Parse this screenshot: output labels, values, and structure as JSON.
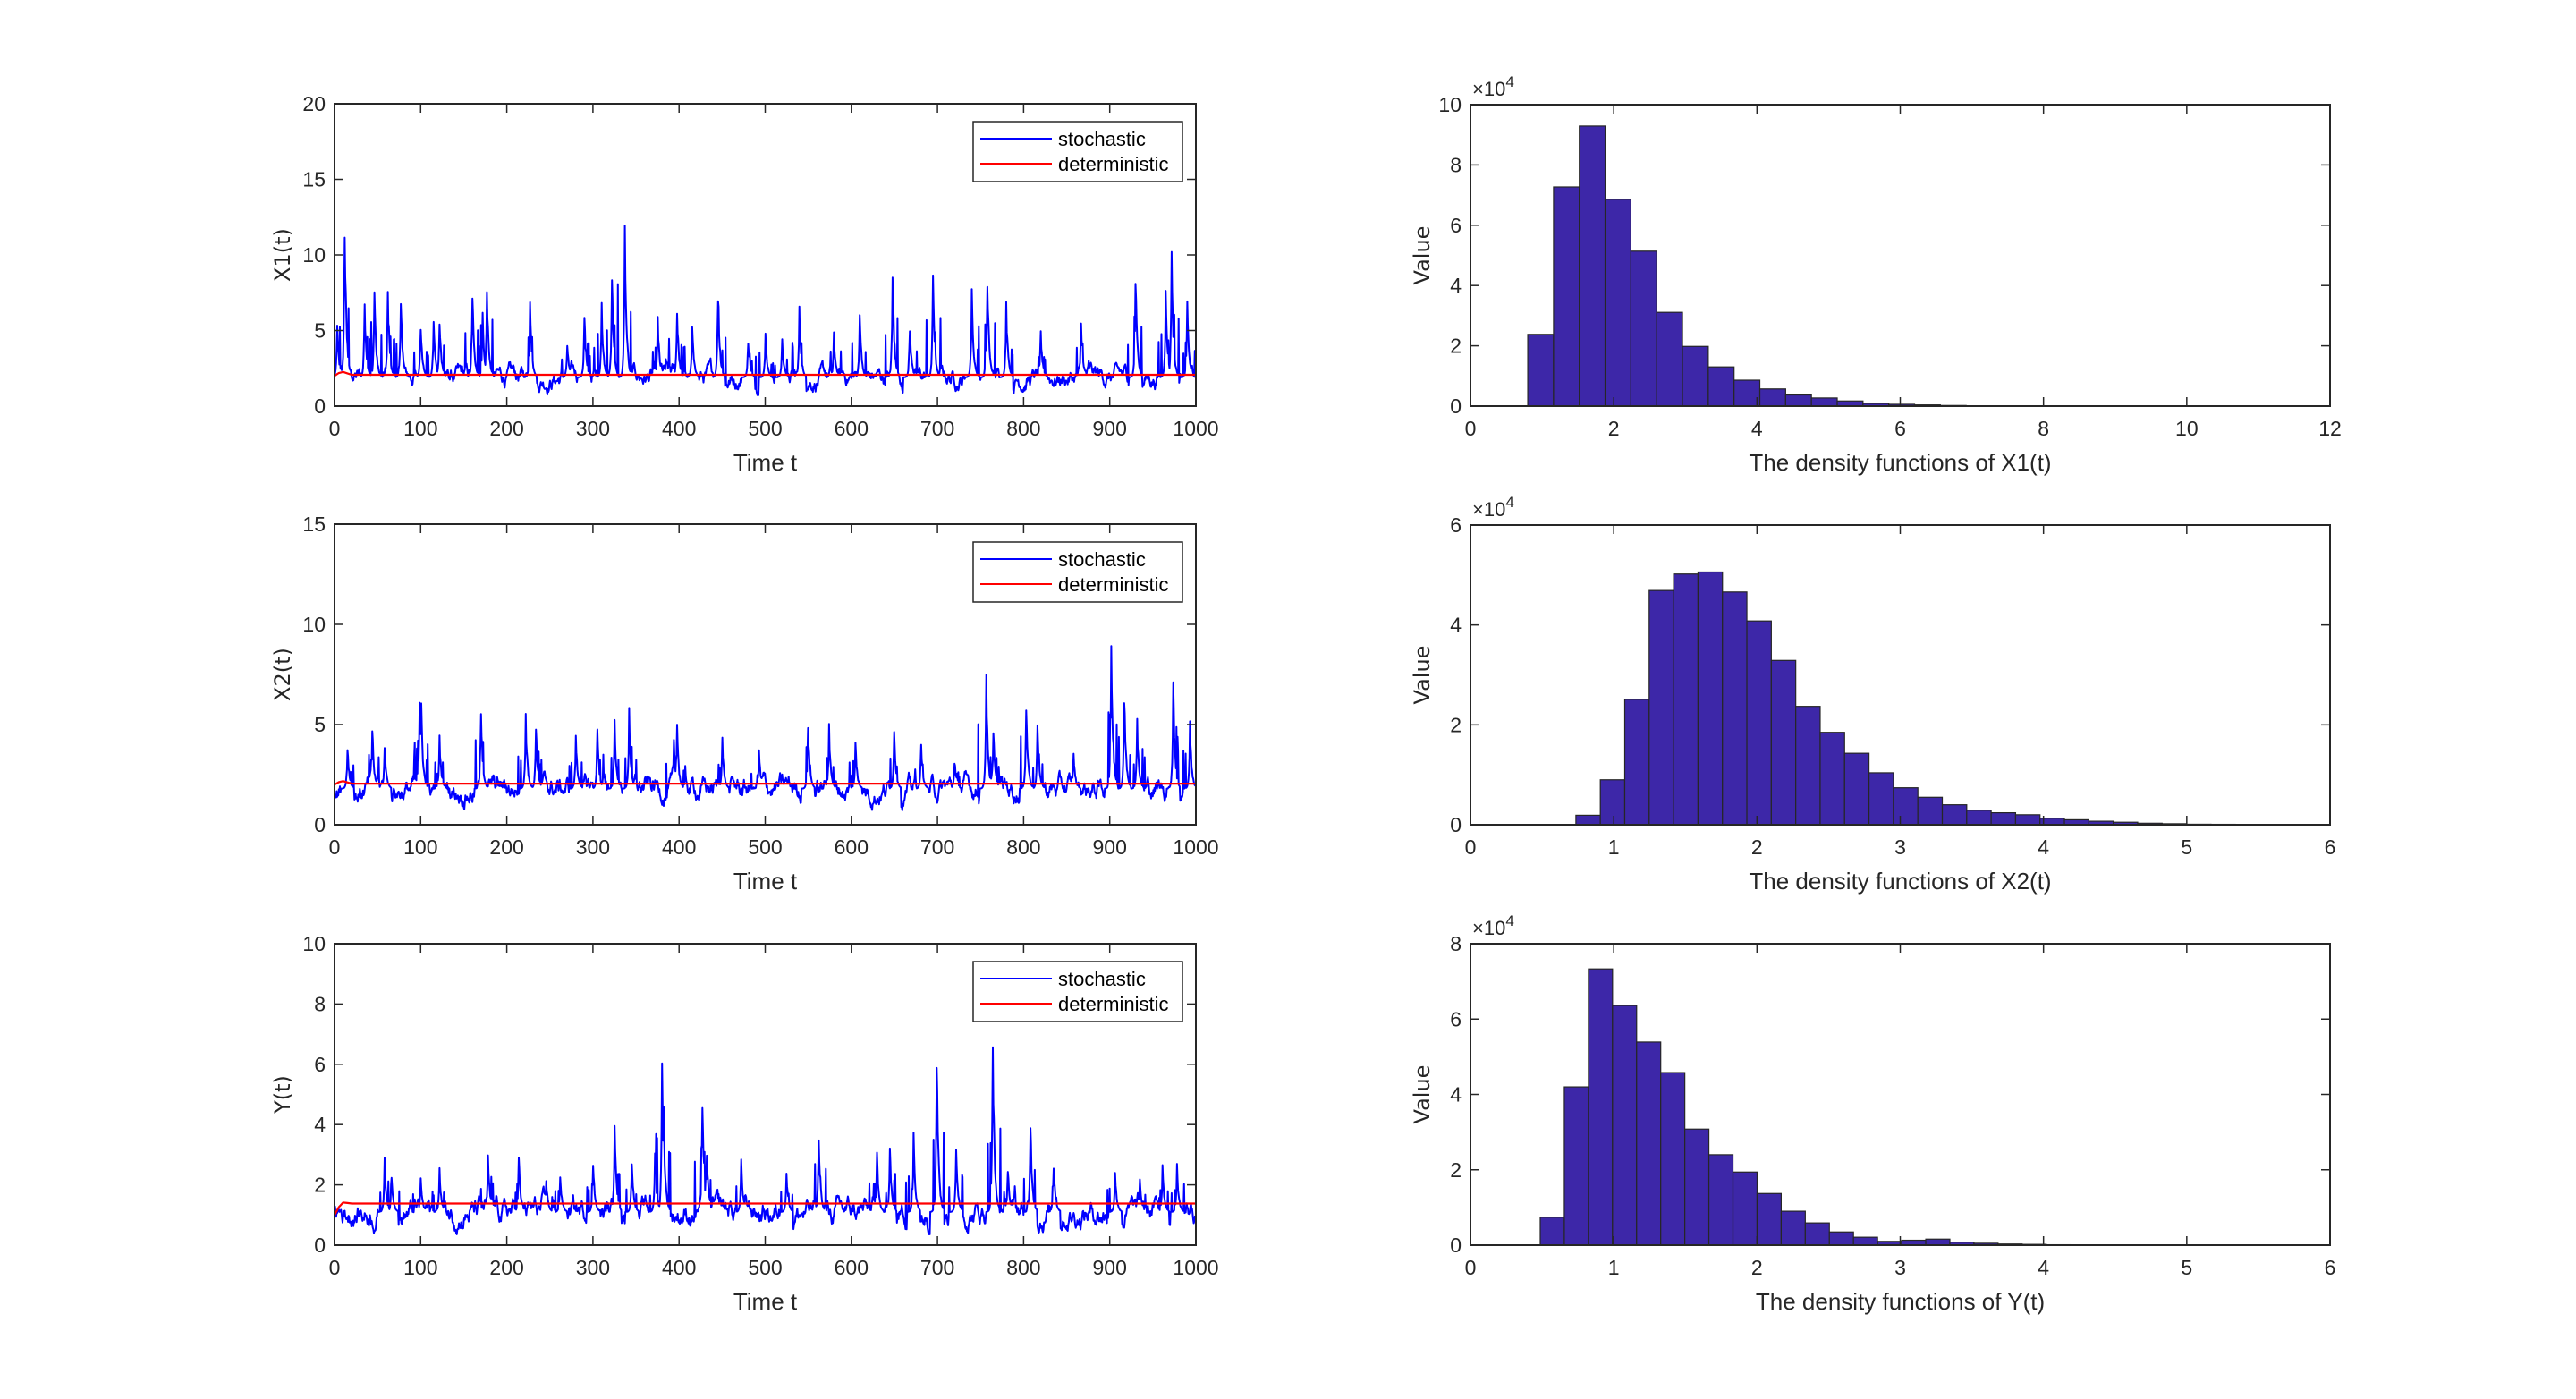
{
  "chart_data": [
    {
      "type": "line",
      "id": "x1-time",
      "xlabel": "Time t",
      "ylabel": "X1(t)",
      "xlim": [
        0,
        1000
      ],
      "ylim": [
        0,
        20
      ],
      "xticks": [
        "0",
        "100",
        "200",
        "300",
        "400",
        "500",
        "600",
        "700",
        "800",
        "900",
        "1000"
      ],
      "yticks": [
        "0",
        "5",
        "10",
        "15",
        "20"
      ],
      "legend": {
        "position": "top-right",
        "entries": [
          "stochastic",
          "deterministic"
        ]
      },
      "colors": {
        "stochastic": "#0000FF",
        "deterministic": "#FF0000"
      },
      "deterministic": {
        "start": 2.0,
        "peak": 2.3,
        "equilibrium": 2.07
      },
      "stochastic": {
        "baseline": 1.9,
        "low": 0.8,
        "peaks": [
          [
            3,
            5.2
          ],
          [
            12,
            11.8
          ],
          [
            35,
            6.7
          ],
          [
            46,
            7.7
          ],
          [
            62,
            7.4
          ],
          [
            77,
            7.2
          ],
          [
            100,
            5.3
          ],
          [
            115,
            5.6
          ],
          [
            122,
            5.6
          ],
          [
            160,
            7.5
          ],
          [
            172,
            5.8
          ],
          [
            177,
            7.9
          ],
          [
            227,
            6.6
          ],
          [
            270,
            4.2
          ],
          [
            290,
            5.9
          ],
          [
            310,
            6.5
          ],
          [
            322,
            8.5
          ],
          [
            337,
            11.6
          ],
          [
            375,
            5.6
          ],
          [
            398,
            6.3
          ],
          [
            415,
            5.2
          ],
          [
            445,
            7.6
          ],
          [
            480,
            4.4
          ],
          [
            500,
            4.6
          ],
          [
            520,
            4.3
          ],
          [
            540,
            6.1
          ],
          [
            580,
            4.6
          ],
          [
            610,
            5.7
          ],
          [
            648,
            8.7
          ],
          [
            668,
            5.2
          ],
          [
            695,
            8.4
          ],
          [
            740,
            7.2
          ],
          [
            758,
            8.6
          ],
          [
            780,
            6.5
          ],
          [
            820,
            4.8
          ],
          [
            867,
            5.6
          ],
          [
            930,
            8.2
          ],
          [
            965,
            7.0
          ],
          [
            972,
            9.6
          ],
          [
            990,
            6.8
          ]
        ]
      }
    },
    {
      "type": "histogram",
      "id": "x1-hist",
      "xlabel": "The density functions of X1(t)",
      "ylabel": "Value",
      "xlim": [
        0,
        12
      ],
      "ylim": [
        0,
        10
      ],
      "y_multiplier": "×10",
      "y_exponent": "4",
      "xticks": [
        "0",
        "2",
        "4",
        "6",
        "8",
        "10",
        "12"
      ],
      "yticks": [
        "0",
        "2",
        "4",
        "6",
        "8",
        "10"
      ],
      "bin_start": 0.8,
      "bin_width": 0.36,
      "values": [
        2.38,
        7.27,
        9.29,
        6.86,
        5.14,
        3.11,
        1.98,
        1.3,
        0.86,
        0.57,
        0.37,
        0.27,
        0.17,
        0.09,
        0.06,
        0.04,
        0.02,
        0.01,
        0.01,
        0.005,
        0.004,
        0.003,
        0.002,
        0.002,
        0.001,
        0.001,
        0.001,
        0.001,
        0.001,
        0.001
      ],
      "color": "#3D27A8"
    },
    {
      "type": "line",
      "id": "x2-time",
      "xlabel": "Time t",
      "ylabel": "X2(t)",
      "xlim": [
        0,
        1000
      ],
      "ylim": [
        0,
        15
      ],
      "xticks": [
        "0",
        "100",
        "200",
        "300",
        "400",
        "500",
        "600",
        "700",
        "800",
        "900",
        "1000"
      ],
      "yticks": [
        "0",
        "5",
        "10",
        "15"
      ],
      "legend": {
        "position": "top-right",
        "entries": [
          "stochastic",
          "deterministic"
        ]
      },
      "colors": {
        "stochastic": "#0000FF",
        "deterministic": "#FF0000"
      },
      "deterministic": {
        "start": 2.0,
        "peak": 2.2,
        "equilibrium": 2.05
      },
      "stochastic": {
        "baseline": 1.8,
        "low": 0.8,
        "peaks": [
          [
            15,
            3.8
          ],
          [
            44,
            4.8
          ],
          [
            58,
            3.9
          ],
          [
            99,
            6.5
          ],
          [
            101,
            5.8
          ],
          [
            122,
            4.2
          ],
          [
            170,
            5.7
          ],
          [
            222,
            5.3
          ],
          [
            234,
            4.8
          ],
          [
            280,
            4.3
          ],
          [
            305,
            4.6
          ],
          [
            325,
            5.0
          ],
          [
            342,
            5.4
          ],
          [
            394,
            4.0
          ],
          [
            398,
            4.7
          ],
          [
            450,
            4.2
          ],
          [
            493,
            3.6
          ],
          [
            550,
            5.0
          ],
          [
            574,
            4.7
          ],
          [
            605,
            4.0
          ],
          [
            650,
            4.5
          ],
          [
            681,
            3.9
          ],
          [
            720,
            3.2
          ],
          [
            757,
            6.9
          ],
          [
            765,
            4.8
          ],
          [
            803,
            6.0
          ],
          [
            816,
            4.7
          ],
          [
            858,
            3.5
          ],
          [
            902,
            8.8
          ],
          [
            917,
            6.5
          ],
          [
            932,
            4.9
          ],
          [
            974,
            6.8
          ],
          [
            993,
            4.8
          ]
        ]
      }
    },
    {
      "type": "histogram",
      "id": "x2-hist",
      "xlabel": "The density functions of X2(t)",
      "ylabel": "Value",
      "xlim": [
        0,
        6
      ],
      "ylim": [
        0,
        6
      ],
      "y_multiplier": "×10",
      "y_exponent": "4",
      "xticks": [
        "0",
        "1",
        "2",
        "3",
        "4",
        "5",
        "6"
      ],
      "yticks": [
        "0",
        "2",
        "4",
        "6"
      ],
      "bin_start": 0.736,
      "bin_width": 0.1705,
      "values": [
        0.19,
        0.9,
        2.51,
        4.69,
        5.02,
        5.06,
        4.66,
        4.08,
        3.29,
        2.37,
        1.85,
        1.43,
        1.04,
        0.74,
        0.55,
        0.4,
        0.29,
        0.24,
        0.2,
        0.13,
        0.1,
        0.07,
        0.05,
        0.03,
        0.02,
        0.01,
        0.008,
        0.005,
        0.003,
        0.002
      ],
      "color": "#3D27A8"
    },
    {
      "type": "line",
      "id": "y-time",
      "xlabel": "Time t",
      "ylabel": "Y(t)",
      "xlim": [
        0,
        1000
      ],
      "ylim": [
        0,
        10
      ],
      "xticks": [
        "0",
        "100",
        "200",
        "300",
        "400",
        "500",
        "600",
        "700",
        "800",
        "900",
        "1000"
      ],
      "yticks": [
        "0",
        "2",
        "4",
        "6",
        "8",
        "10"
      ],
      "legend": {
        "position": "top-right",
        "entries": [
          "stochastic",
          "deterministic"
        ]
      },
      "colors": {
        "stochastic": "#0000FF",
        "deterministic": "#FF0000"
      },
      "deterministic": {
        "start": 1.0,
        "peak": 1.42,
        "equilibrium": 1.38
      },
      "stochastic": {
        "baseline": 1.1,
        "low": 0.4,
        "peaks": [
          [
            58,
            2.7
          ],
          [
            66,
            2.2
          ],
          [
            100,
            2.2
          ],
          [
            122,
            2.4
          ],
          [
            178,
            3.0
          ],
          [
            214,
            2.9
          ],
          [
            246,
            2.1
          ],
          [
            262,
            2.3
          ],
          [
            300,
            2.7
          ],
          [
            325,
            4.0
          ],
          [
            345,
            2.7
          ],
          [
            372,
            2.9
          ],
          [
            380,
            5.5
          ],
          [
            382,
            4.2
          ],
          [
            427,
            4.8
          ],
          [
            432,
            3.1
          ],
          [
            472,
            2.7
          ],
          [
            525,
            2.3
          ],
          [
            562,
            3.6
          ],
          [
            630,
            2.9
          ],
          [
            645,
            3.1
          ],
          [
            672,
            3.5
          ],
          [
            699,
            6.3
          ],
          [
            722,
            3.2
          ],
          [
            764,
            6.6
          ],
          [
            782,
            2.6
          ],
          [
            808,
            3.9
          ],
          [
            835,
            2.7
          ],
          [
            906,
            2.3
          ],
          [
            935,
            2.2
          ],
          [
            961,
            2.5
          ],
          [
            978,
            2.6
          ]
        ]
      }
    },
    {
      "type": "histogram",
      "id": "y-hist",
      "xlabel": "The density functions of Y(t)",
      "ylabel": "Value",
      "xlim": [
        0,
        6
      ],
      "ylim": [
        0,
        8
      ],
      "y_multiplier": "×10",
      "y_exponent": "4",
      "xticks": [
        "0",
        "1",
        "2",
        "3",
        "4",
        "5",
        "6"
      ],
      "yticks": [
        "0",
        "2",
        "4",
        "6",
        "8"
      ],
      "bin_start": 0.487,
      "bin_width": 0.1682,
      "values": [
        0.74,
        4.2,
        7.33,
        6.36,
        5.39,
        4.58,
        3.08,
        2.4,
        1.94,
        1.37,
        0.9,
        0.59,
        0.35,
        0.21,
        0.1,
        0.13,
        0.16,
        0.08,
        0.05,
        0.03,
        0.02,
        0.01,
        0.008,
        0.006,
        0.004,
        0.003,
        0.002,
        0.002,
        0.001,
        0.001
      ],
      "color": "#3D27A8"
    }
  ]
}
